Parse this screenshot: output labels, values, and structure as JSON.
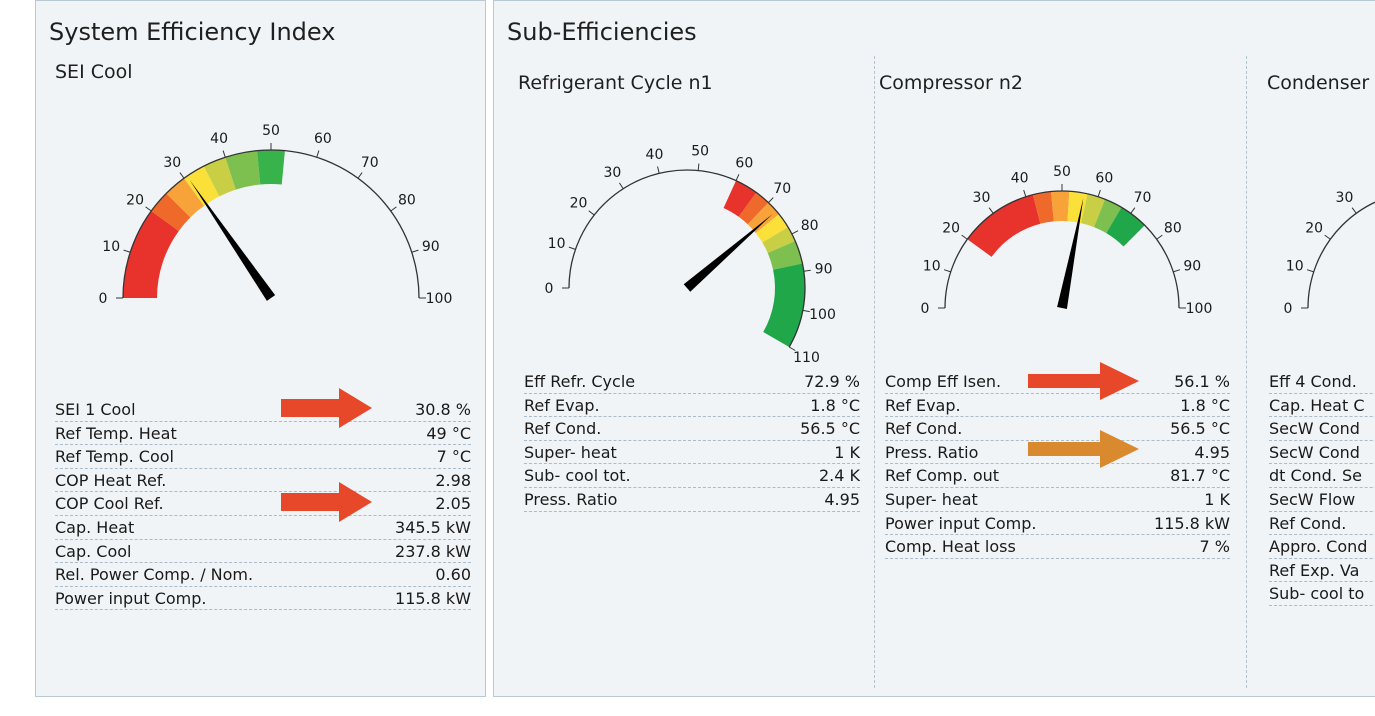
{
  "sei": {
    "title": "System Efficiency Index",
    "subtitle": "SEI Cool",
    "gauge": {
      "max": 100,
      "tick_labels": [
        "0",
        "10",
        "20",
        "30",
        "40",
        "50",
        "60",
        "70",
        "80",
        "90",
        "100"
      ],
      "needle_value": 30.8,
      "bands": [
        {
          "from": 0,
          "to": 20,
          "color": "#e8322c"
        },
        {
          "from": 20,
          "to": 25,
          "color": "#ef6a2a"
        },
        {
          "from": 25,
          "to": 30,
          "color": "#f8a33a"
        },
        {
          "from": 30,
          "to": 35,
          "color": "#fbe03a"
        },
        {
          "from": 35,
          "to": 40,
          "color": "#c9cf45"
        },
        {
          "from": 40,
          "to": 47,
          "color": "#7ec04f"
        },
        {
          "from": 47,
          "to": 53,
          "color": "#38b24a"
        }
      ]
    },
    "rows": [
      {
        "label": "SEI 1 Cool",
        "value": "30.8 %"
      },
      {
        "label": "Ref Temp. Heat",
        "value": "49 °C"
      },
      {
        "label": "Ref Temp. Cool",
        "value": "7 °C"
      },
      {
        "label": "COP Heat Ref.",
        "value": "2.98"
      },
      {
        "label": "COP Cool Ref.",
        "value": "2.05"
      },
      {
        "label": "Cap. Heat",
        "value": "345.5 kW"
      },
      {
        "label": "Cap. Cool",
        "value": "237.8 kW"
      },
      {
        "label": "Rel. Power Comp. / Nom.",
        "value": "0.60"
      },
      {
        "label": "Power input Comp.",
        "value": "115.8 kW"
      }
    ]
  },
  "sub": {
    "title": "Sub-Efficiencies",
    "refrigerant": {
      "title": "Refrigerant Cycle n1",
      "gauge": {
        "max": 110,
        "tick_labels": [
          "0",
          "10",
          "20",
          "30",
          "40",
          "50",
          "60",
          "70",
          "80",
          "90",
          "100",
          "110"
        ],
        "needle_value": 72.9,
        "bands": [
          {
            "from": 60,
            "to": 66,
            "color": "#e8322c"
          },
          {
            "from": 66,
            "to": 70,
            "color": "#ef6a2a"
          },
          {
            "from": 70,
            "to": 74,
            "color": "#f8a33a"
          },
          {
            "from": 74,
            "to": 78,
            "color": "#fbe03a"
          },
          {
            "from": 78,
            "to": 82,
            "color": "#c9cf45"
          },
          {
            "from": 82,
            "to": 88,
            "color": "#7ec04f"
          },
          {
            "from": 88,
            "to": 110,
            "color": "#1fa74a"
          }
        ]
      },
      "rows": [
        {
          "label": "Eff Refr. Cycle",
          "value": "72.9 %"
        },
        {
          "label": "Ref Evap.",
          "value": "1.8 °C"
        },
        {
          "label": "Ref Cond.",
          "value": "56.5 °C"
        },
        {
          "label": "Super- heat",
          "value": "1 K"
        },
        {
          "label": "Sub- cool tot.",
          "value": "2.4 K"
        },
        {
          "label": "Press. Ratio",
          "value": "4.95"
        }
      ]
    },
    "compressor": {
      "title": "Compressor n2",
      "gauge": {
        "max": 100,
        "tick_labels": [
          "0",
          "10",
          "20",
          "30",
          "40",
          "50",
          "60",
          "70",
          "80",
          "90",
          "100"
        ],
        "needle_value": 56.1,
        "bands": [
          {
            "from": 20,
            "to": 42,
            "color": "#e8322c"
          },
          {
            "from": 42,
            "to": 47,
            "color": "#ef6a2a"
          },
          {
            "from": 47,
            "to": 52,
            "color": "#f8a33a"
          },
          {
            "from": 52,
            "to": 57,
            "color": "#fbe03a"
          },
          {
            "from": 57,
            "to": 62,
            "color": "#c9cf45"
          },
          {
            "from": 62,
            "to": 67,
            "color": "#7ec04f"
          },
          {
            "from": 67,
            "to": 75,
            "color": "#1fa74a"
          }
        ]
      },
      "rows": [
        {
          "label": "Comp Eff Isen.",
          "value": "56.1 %"
        },
        {
          "label": "Ref Evap.",
          "value": "1.8 °C"
        },
        {
          "label": "Ref Cond.",
          "value": "56.5 °C"
        },
        {
          "label": "Press. Ratio",
          "value": "4.95"
        },
        {
          "label": "Ref Comp. out",
          "value": "81.7 °C"
        },
        {
          "label": "Super- heat",
          "value": "1 K"
        },
        {
          "label": "Power input Comp.",
          "value": "115.8 kW"
        },
        {
          "label": "Comp. Heat loss",
          "value": "7 %"
        }
      ]
    },
    "condenser": {
      "title": "Condenser",
      "gauge": {
        "max": 100,
        "tick_labels": [
          "0",
          "10",
          "20",
          "30"
        ]
      },
      "rows": [
        {
          "label": "Eff 4 Cond."
        },
        {
          "label": "Cap. Heat C"
        },
        {
          "label": "SecW Cond"
        },
        {
          "label": "SecW Cond"
        },
        {
          "label": "dt Cond. Se"
        },
        {
          "label": "SecW Flow"
        },
        {
          "label": "Ref Cond."
        },
        {
          "label": "Appro. Cond"
        },
        {
          "label": "Ref Exp. Va"
        },
        {
          "label": "Sub- cool to"
        }
      ]
    }
  },
  "colors": {
    "panel_bg": "#f0f4f7",
    "panel_border": "#b9c9d4",
    "arrow_red": "#e8482a",
    "arrow_orange": "#d9892e"
  }
}
